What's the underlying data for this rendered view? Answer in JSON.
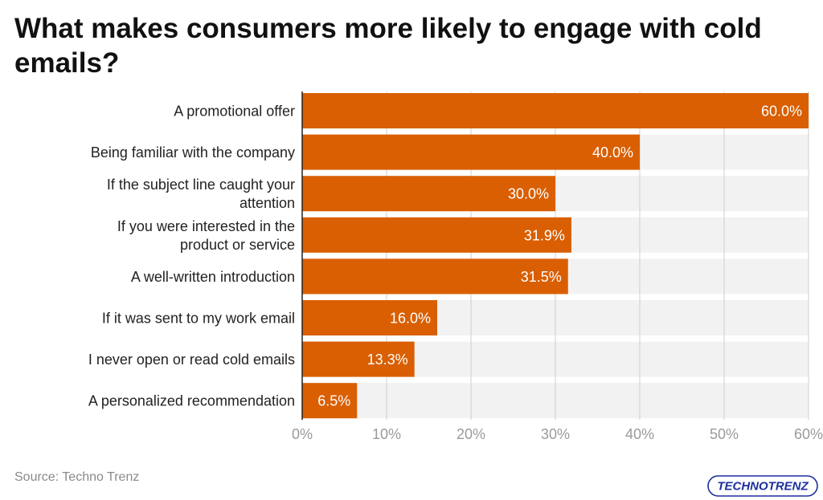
{
  "title": "What makes consumers more likely to engage with cold emails?",
  "source": "Source: Techno Trenz",
  "logo_text": "TECHNOTRENZ",
  "colors": {
    "bar": "#D95F02",
    "row_bg": "#F2F2F2",
    "grid": "#CFCFCF",
    "axis": "#222222",
    "tick_text": "#9A9A9A",
    "logo_blue": "#1D2F9E",
    "logo_purple": "#7A2AD8"
  },
  "chart_data": {
    "type": "bar",
    "orientation": "horizontal",
    "categories": [
      "A promotional offer",
      "Being familiar with the company",
      "If the subject line caught your attention",
      "If you were interested in the product or service",
      "A well-written introduction",
      "If it was sent to my work email",
      "I never open or read cold emails",
      "A personalized recommendation"
    ],
    "values": [
      60.0,
      40.0,
      30.0,
      31.9,
      31.5,
      16.0,
      13.3,
      6.5
    ],
    "data_labels": [
      "60.0%",
      "40.0%",
      "30.0%",
      "31.9%",
      "31.5%",
      "16.0%",
      "13.3%",
      "6.5%"
    ],
    "xlim": [
      0,
      60
    ],
    "xticks": [
      0,
      10,
      20,
      30,
      40,
      50,
      60
    ],
    "xtick_labels": [
      "0%",
      "10%",
      "20%",
      "30%",
      "40%",
      "50%",
      "60%"
    ],
    "grid": true
  }
}
